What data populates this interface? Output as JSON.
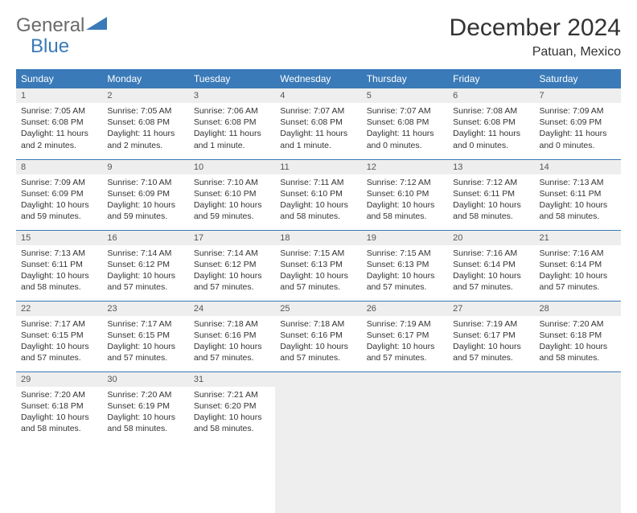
{
  "logo": {
    "text_general": "General",
    "text_blue": "Blue"
  },
  "title": "December 2024",
  "location": "Patuan, Mexico",
  "colors": {
    "header_bg": "#3a7ab8",
    "header_text": "#ffffff",
    "daynum_bg": "#eeeeee",
    "border": "#3a7ab8",
    "body_text": "#333333",
    "logo_gray": "#6a6a6a",
    "logo_blue": "#3a7ab8"
  },
  "weekdays": [
    "Sunday",
    "Monday",
    "Tuesday",
    "Wednesday",
    "Thursday",
    "Friday",
    "Saturday"
  ],
  "weeks": [
    [
      {
        "n": "1",
        "sr": "7:05 AM",
        "ss": "6:08 PM",
        "dl": "11 hours and 2 minutes."
      },
      {
        "n": "2",
        "sr": "7:05 AM",
        "ss": "6:08 PM",
        "dl": "11 hours and 2 minutes."
      },
      {
        "n": "3",
        "sr": "7:06 AM",
        "ss": "6:08 PM",
        "dl": "11 hours and 1 minute."
      },
      {
        "n": "4",
        "sr": "7:07 AM",
        "ss": "6:08 PM",
        "dl": "11 hours and 1 minute."
      },
      {
        "n": "5",
        "sr": "7:07 AM",
        "ss": "6:08 PM",
        "dl": "11 hours and 0 minutes."
      },
      {
        "n": "6",
        "sr": "7:08 AM",
        "ss": "6:08 PM",
        "dl": "11 hours and 0 minutes."
      },
      {
        "n": "7",
        "sr": "7:09 AM",
        "ss": "6:09 PM",
        "dl": "11 hours and 0 minutes."
      }
    ],
    [
      {
        "n": "8",
        "sr": "7:09 AM",
        "ss": "6:09 PM",
        "dl": "10 hours and 59 minutes."
      },
      {
        "n": "9",
        "sr": "7:10 AM",
        "ss": "6:09 PM",
        "dl": "10 hours and 59 minutes."
      },
      {
        "n": "10",
        "sr": "7:10 AM",
        "ss": "6:10 PM",
        "dl": "10 hours and 59 minutes."
      },
      {
        "n": "11",
        "sr": "7:11 AM",
        "ss": "6:10 PM",
        "dl": "10 hours and 58 minutes."
      },
      {
        "n": "12",
        "sr": "7:12 AM",
        "ss": "6:10 PM",
        "dl": "10 hours and 58 minutes."
      },
      {
        "n": "13",
        "sr": "7:12 AM",
        "ss": "6:11 PM",
        "dl": "10 hours and 58 minutes."
      },
      {
        "n": "14",
        "sr": "7:13 AM",
        "ss": "6:11 PM",
        "dl": "10 hours and 58 minutes."
      }
    ],
    [
      {
        "n": "15",
        "sr": "7:13 AM",
        "ss": "6:11 PM",
        "dl": "10 hours and 58 minutes."
      },
      {
        "n": "16",
        "sr": "7:14 AM",
        "ss": "6:12 PM",
        "dl": "10 hours and 57 minutes."
      },
      {
        "n": "17",
        "sr": "7:14 AM",
        "ss": "6:12 PM",
        "dl": "10 hours and 57 minutes."
      },
      {
        "n": "18",
        "sr": "7:15 AM",
        "ss": "6:13 PM",
        "dl": "10 hours and 57 minutes."
      },
      {
        "n": "19",
        "sr": "7:15 AM",
        "ss": "6:13 PM",
        "dl": "10 hours and 57 minutes."
      },
      {
        "n": "20",
        "sr": "7:16 AM",
        "ss": "6:14 PM",
        "dl": "10 hours and 57 minutes."
      },
      {
        "n": "21",
        "sr": "7:16 AM",
        "ss": "6:14 PM",
        "dl": "10 hours and 57 minutes."
      }
    ],
    [
      {
        "n": "22",
        "sr": "7:17 AM",
        "ss": "6:15 PM",
        "dl": "10 hours and 57 minutes."
      },
      {
        "n": "23",
        "sr": "7:17 AM",
        "ss": "6:15 PM",
        "dl": "10 hours and 57 minutes."
      },
      {
        "n": "24",
        "sr": "7:18 AM",
        "ss": "6:16 PM",
        "dl": "10 hours and 57 minutes."
      },
      {
        "n": "25",
        "sr": "7:18 AM",
        "ss": "6:16 PM",
        "dl": "10 hours and 57 minutes."
      },
      {
        "n": "26",
        "sr": "7:19 AM",
        "ss": "6:17 PM",
        "dl": "10 hours and 57 minutes."
      },
      {
        "n": "27",
        "sr": "7:19 AM",
        "ss": "6:17 PM",
        "dl": "10 hours and 57 minutes."
      },
      {
        "n": "28",
        "sr": "7:20 AM",
        "ss": "6:18 PM",
        "dl": "10 hours and 58 minutes."
      }
    ],
    [
      {
        "n": "29",
        "sr": "7:20 AM",
        "ss": "6:18 PM",
        "dl": "10 hours and 58 minutes."
      },
      {
        "n": "30",
        "sr": "7:20 AM",
        "ss": "6:19 PM",
        "dl": "10 hours and 58 minutes."
      },
      {
        "n": "31",
        "sr": "7:21 AM",
        "ss": "6:20 PM",
        "dl": "10 hours and 58 minutes."
      },
      null,
      null,
      null,
      null
    ]
  ],
  "labels": {
    "sunrise": "Sunrise:",
    "sunset": "Sunset:",
    "daylight": "Daylight:"
  }
}
